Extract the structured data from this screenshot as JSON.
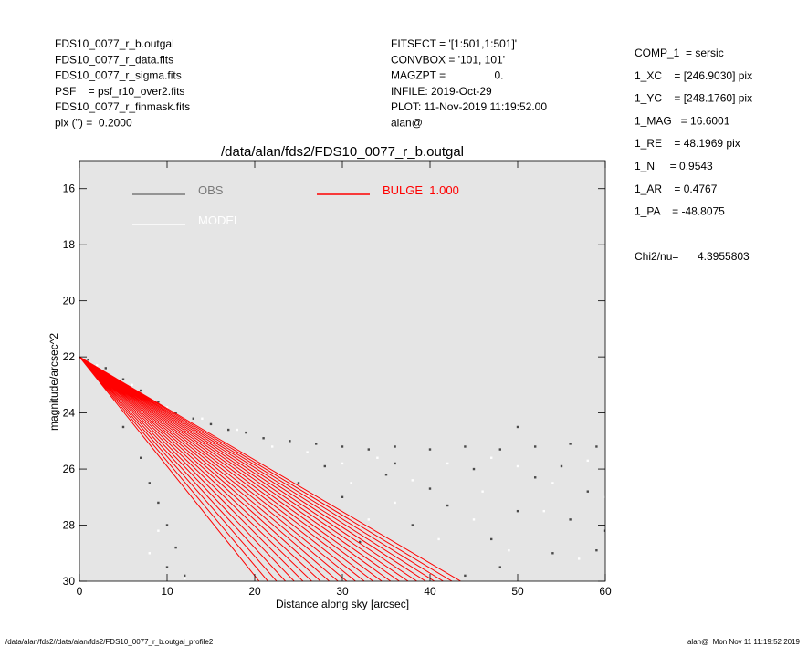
{
  "header": {
    "left": [
      "FDS10_0077_r_b.outgal",
      "FDS10_0077_r_data.fits",
      "FDS10_0077_r_sigma.fits",
      "PSF    = psf_r10_over2.fits",
      "FDS10_0077_r_finmask.fits",
      "pix (\") =  0.2000"
    ],
    "middle": [
      "FITSECT = '[1:501,1:501]'",
      "CONVBOX = '101, 101'",
      "MAGZPT =                0.",
      "INFILE: 2019-Oct-29",
      "PLOT: 11-Nov-2019 11:19:52.00",
      "alan@"
    ]
  },
  "parameters": [
    "COMP_1  = sersic",
    "1_XC    = [246.9030] pix",
    "1_YC    = [248.1760] pix",
    "1_MAG   = 16.6001",
    "1_RE    = 48.1969 pix",
    "1_N     = 0.9543",
    "1_AR    = 0.4767",
    "1_PA    = -48.8075"
  ],
  "chi2": {
    "label": "Chi2/nu=",
    "value": "4.3955803"
  },
  "footer": {
    "left": "/data/alan/fds2//data/alan/fds2/FDS10_0077_r_b.outgal_profile2",
    "right": "alan@  Mon Nov 11 11:19:52 2019"
  },
  "chart_data": {
    "type": "scatter",
    "title": "/data/alan/fds2/FDS10_0077_r_b.outgal",
    "x_label": "Distance along sky [arcsec]",
    "y_label": "magnitude/arcsec^2",
    "xlim": [
      0,
      60
    ],
    "ylim": [
      15,
      30
    ],
    "y_inverted": true,
    "xticks": [
      0,
      10,
      20,
      30,
      40,
      50,
      60
    ],
    "yticks": [
      16,
      18,
      20,
      22,
      24,
      26,
      28,
      30
    ],
    "background": "#e5e5e5",
    "series": [
      {
        "name": "OBS",
        "color": "#7a7a7a",
        "point_color": "#4a4a4a",
        "mode": "markers",
        "x": [
          1,
          3,
          5,
          7,
          9,
          11,
          13,
          15,
          17,
          19,
          21,
          24,
          27,
          30,
          33,
          36,
          40,
          44,
          48,
          52,
          56,
          59,
          5,
          7,
          8,
          9,
          10,
          11,
          10,
          12,
          25,
          30,
          35,
          38,
          42,
          45,
          47,
          50,
          52,
          54,
          56,
          58,
          59,
          44,
          48,
          36,
          28,
          50,
          32,
          55,
          60,
          40
        ],
        "y": [
          22.1,
          22.4,
          22.8,
          23.2,
          23.6,
          24.0,
          24.2,
          24.4,
          24.6,
          24.7,
          24.9,
          25.0,
          25.1,
          25.2,
          25.3,
          25.2,
          25.3,
          25.2,
          25.3,
          25.2,
          25.1,
          25.2,
          24.5,
          25.6,
          26.5,
          27.2,
          28.0,
          28.8,
          29.5,
          29.8,
          26.5,
          27.0,
          26.2,
          28.0,
          27.3,
          26.0,
          28.5,
          27.5,
          26.3,
          29.0,
          27.8,
          26.8,
          28.9,
          29.8,
          29.5,
          25.8,
          25.9,
          24.5,
          28.6,
          25.9,
          28.2,
          26.7
        ]
      },
      {
        "name": "MODEL",
        "color": "#ffffff",
        "mode": "markers",
        "x": [
          2,
          6,
          10,
          14,
          18,
          22,
          26,
          30,
          34,
          38,
          42,
          46,
          50,
          54,
          58,
          26,
          31,
          36,
          41,
          45,
          49,
          53,
          57,
          60,
          8,
          9,
          12,
          40,
          47,
          33
        ],
        "y": [
          22.3,
          23.0,
          23.8,
          24.2,
          24.6,
          25.2,
          25.4,
          25.8,
          25.6,
          26.4,
          25.8,
          26.8,
          25.9,
          26.5,
          25.7,
          27.0,
          26.5,
          27.2,
          28.5,
          27.8,
          28.9,
          27.5,
          29.2,
          27.0,
          29.0,
          28.2,
          29.9,
          29.7,
          25.6,
          27.8
        ]
      },
      {
        "name": "BULGE  1.000",
        "color": "#ff0000",
        "mode": "lines",
        "x": [
          0,
          20.5,
          null,
          0,
          21.5,
          null,
          0,
          22.5,
          null,
          0,
          23.5,
          null,
          0,
          24.5,
          null,
          0,
          25.5,
          null,
          0,
          26.5,
          null,
          0,
          27.5,
          null,
          0,
          28.5,
          null,
          0,
          29.5,
          null,
          0,
          30.5,
          null,
          0,
          31.5,
          null,
          0,
          32.5,
          null,
          0,
          33.5,
          null,
          0,
          34.5,
          null,
          0,
          35.5,
          null,
          0,
          36.5,
          null,
          0,
          37.5,
          null,
          0,
          38.5,
          null,
          0,
          39.5,
          null,
          0,
          40.5,
          null,
          0,
          41.5,
          null,
          0,
          42.5,
          null,
          0,
          43.5
        ],
        "y": [
          22,
          30,
          null,
          22,
          30,
          null,
          22,
          30,
          null,
          22,
          30,
          null,
          22,
          30,
          null,
          22,
          30,
          null,
          22,
          30,
          null,
          22,
          30,
          null,
          22,
          30,
          null,
          22,
          30,
          null,
          22,
          30,
          null,
          22,
          30,
          null,
          22,
          30,
          null,
          22,
          30,
          null,
          22,
          30,
          null,
          22,
          30,
          null,
          22,
          30,
          null,
          22,
          30,
          null,
          22,
          30,
          null,
          22,
          30,
          null,
          22,
          30,
          null,
          22,
          30,
          null,
          22,
          30,
          null,
          22,
          30
        ]
      }
    ]
  }
}
